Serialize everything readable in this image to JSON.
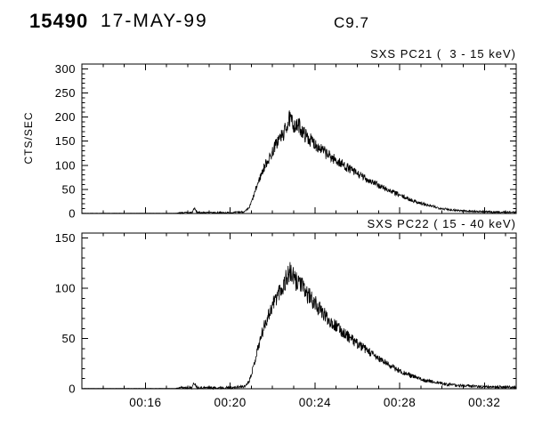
{
  "header": {
    "event_id": "15490",
    "date": "17-MAY-99",
    "goes_class": "C9.7"
  },
  "chart_data": [
    {
      "type": "line",
      "title": "SXS PC21 (  3 - 15 keV)",
      "ylabel": "CTS/SEC",
      "xlabel": "",
      "xlim_minutes": [
        13.0,
        33.5
      ],
      "ylim": [
        0,
        310
      ],
      "y_ticks": [
        0,
        50,
        100,
        150,
        200,
        250,
        300
      ],
      "y_minor_step": 10,
      "x_ticks": [
        {
          "minute": 16,
          "label": "00:16"
        },
        {
          "minute": 20,
          "label": "00:20"
        },
        {
          "minute": 24,
          "label": "00:24"
        },
        {
          "minute": 28,
          "label": "00:28"
        },
        {
          "minute": 32,
          "label": "00:32"
        }
      ],
      "x_minor_step_minutes": 1,
      "grid": false,
      "envelope_points": [
        [
          13,
          0.5
        ],
        [
          17.4,
          0.5
        ],
        [
          17.6,
          1.5
        ],
        [
          18.2,
          2
        ],
        [
          18.3,
          11
        ],
        [
          18.45,
          2
        ],
        [
          19.5,
          1.5
        ],
        [
          20.2,
          2
        ],
        [
          20.7,
          4
        ],
        [
          20.9,
          12
        ],
        [
          21.1,
          35
        ],
        [
          21.3,
          62
        ],
        [
          21.5,
          85
        ],
        [
          21.7,
          105
        ],
        [
          21.9,
          118
        ],
        [
          22.1,
          138
        ],
        [
          22.3,
          155
        ],
        [
          22.5,
          163
        ],
        [
          22.65,
          180
        ],
        [
          22.8,
          196
        ],
        [
          22.95,
          188
        ],
        [
          23.1,
          178
        ],
        [
          23.25,
          183
        ],
        [
          23.4,
          170
        ],
        [
          23.6,
          160
        ],
        [
          23.8,
          152
        ],
        [
          24.0,
          145
        ],
        [
          24.3,
          133
        ],
        [
          24.6,
          122
        ],
        [
          25.0,
          110
        ],
        [
          25.4,
          99
        ],
        [
          25.8,
          88
        ],
        [
          26.2,
          77
        ],
        [
          26.6,
          68
        ],
        [
          27.0,
          58
        ],
        [
          27.4,
          50
        ],
        [
          27.8,
          42
        ],
        [
          28.2,
          34
        ],
        [
          28.6,
          27
        ],
        [
          29.0,
          21
        ],
        [
          29.4,
          16
        ],
        [
          29.8,
          12
        ],
        [
          30.2,
          9
        ],
        [
          30.6,
          7
        ],
        [
          31.0,
          5.5
        ],
        [
          31.5,
          4.5
        ],
        [
          32.0,
          3.5
        ],
        [
          32.5,
          3
        ],
        [
          33.5,
          2.5
        ]
      ],
      "noise": {
        "abs": 1.6,
        "rel": 0.085,
        "pre_abs": 0.15,
        "onset_minute": 17.6,
        "seed": 7
      }
    },
    {
      "type": "line",
      "title": "SXS PC22 ( 15 - 40 keV)",
      "ylabel": "",
      "xlabel": "",
      "xlim_minutes": [
        13.0,
        33.5
      ],
      "ylim": [
        0,
        155
      ],
      "y_ticks": [
        0,
        50,
        100,
        150
      ],
      "y_minor_step": 10,
      "x_ticks": [
        {
          "minute": 16,
          "label": "00:16"
        },
        {
          "minute": 20,
          "label": "00:20"
        },
        {
          "minute": 24,
          "label": "00:24"
        },
        {
          "minute": 28,
          "label": "00:28"
        },
        {
          "minute": 32,
          "label": "00:32"
        }
      ],
      "x_minor_step_minutes": 1,
      "grid": false,
      "envelope_points": [
        [
          13,
          0.3
        ],
        [
          17.4,
          0.3
        ],
        [
          17.6,
          1
        ],
        [
          18.2,
          1.2
        ],
        [
          18.3,
          6
        ],
        [
          18.45,
          1.2
        ],
        [
          19.5,
          1
        ],
        [
          20.2,
          1.2
        ],
        [
          20.7,
          2.5
        ],
        [
          20.9,
          8
        ],
        [
          21.1,
          22
        ],
        [
          21.3,
          40
        ],
        [
          21.5,
          55
        ],
        [
          21.7,
          68
        ],
        [
          21.9,
          78
        ],
        [
          22.1,
          88
        ],
        [
          22.3,
          97
        ],
        [
          22.5,
          102
        ],
        [
          22.65,
          110
        ],
        [
          22.8,
          116
        ],
        [
          22.95,
          112
        ],
        [
          23.1,
          106
        ],
        [
          23.25,
          109
        ],
        [
          23.4,
          101
        ],
        [
          23.6,
          95
        ],
        [
          23.8,
          90
        ],
        [
          24.0,
          85
        ],
        [
          24.3,
          77
        ],
        [
          24.6,
          70
        ],
        [
          25.0,
          62
        ],
        [
          25.4,
          55
        ],
        [
          25.8,
          48
        ],
        [
          26.2,
          42
        ],
        [
          26.6,
          36
        ],
        [
          27.0,
          30
        ],
        [
          27.4,
          25
        ],
        [
          27.8,
          20
        ],
        [
          28.2,
          16
        ],
        [
          28.6,
          12.5
        ],
        [
          29.0,
          9.5
        ],
        [
          29.4,
          7.5
        ],
        [
          29.8,
          6
        ],
        [
          30.2,
          4.5
        ],
        [
          30.6,
          3.5
        ],
        [
          31.0,
          3
        ],
        [
          31.5,
          2.5
        ],
        [
          32.0,
          2
        ],
        [
          32.5,
          1.8
        ],
        [
          33.5,
          1.5
        ]
      ],
      "noise": {
        "abs": 1.1,
        "rel": 0.085,
        "pre_abs": 0.1,
        "onset_minute": 17.6,
        "seed": 11
      }
    }
  ],
  "colors": {
    "trace": "#000000",
    "axis": "#000000",
    "background": "#ffffff"
  }
}
